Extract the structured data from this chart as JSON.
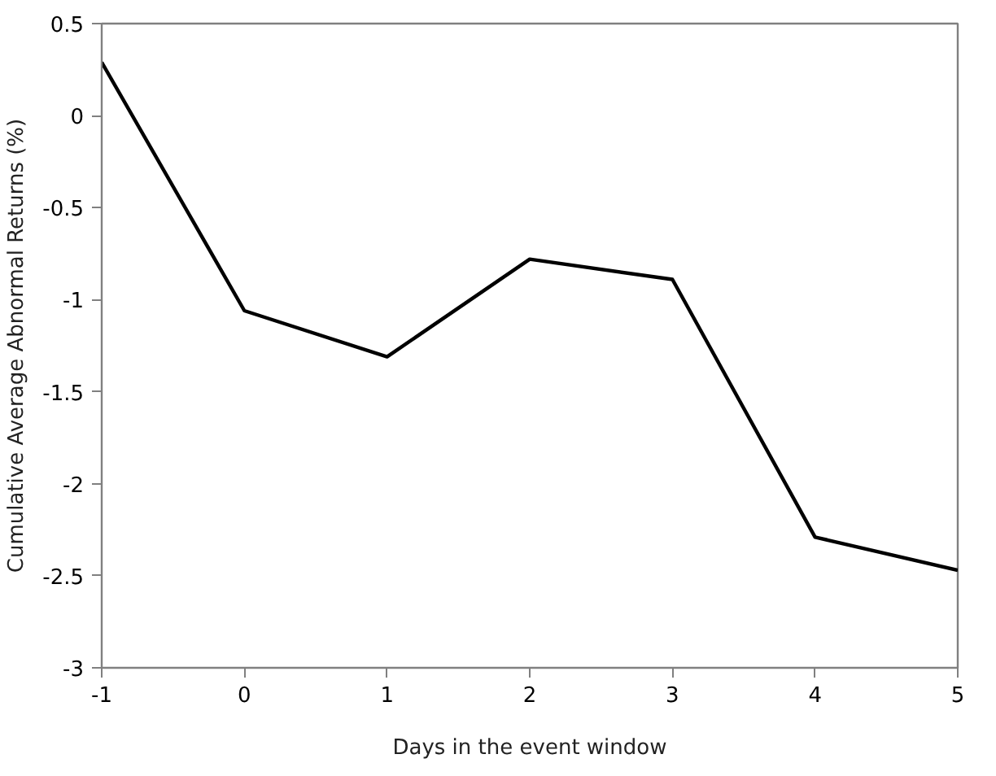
{
  "chart_data": {
    "type": "line",
    "xlabel": "Days in the event window",
    "ylabel": "Cumulative Average Abnormal Returns (%)",
    "x": [
      -1,
      0,
      1,
      2,
      3,
      4,
      5
    ],
    "series": [
      {
        "color": "#000000",
        "values": [
          0.29,
          -1.06,
          -1.31,
          -0.78,
          -0.89,
          -2.29,
          -2.47
        ]
      }
    ],
    "xlim": [
      -1,
      5
    ],
    "xticks": [
      -1,
      0,
      1,
      2,
      3,
      4,
      5
    ],
    "ylim": [
      -3,
      0.5
    ],
    "yticks": [
      -3,
      -2.5,
      -2,
      -1.5,
      -1,
      -0.5,
      0,
      0.5
    ],
    "grid": false,
    "marker": "none",
    "line_style": "solid"
  }
}
